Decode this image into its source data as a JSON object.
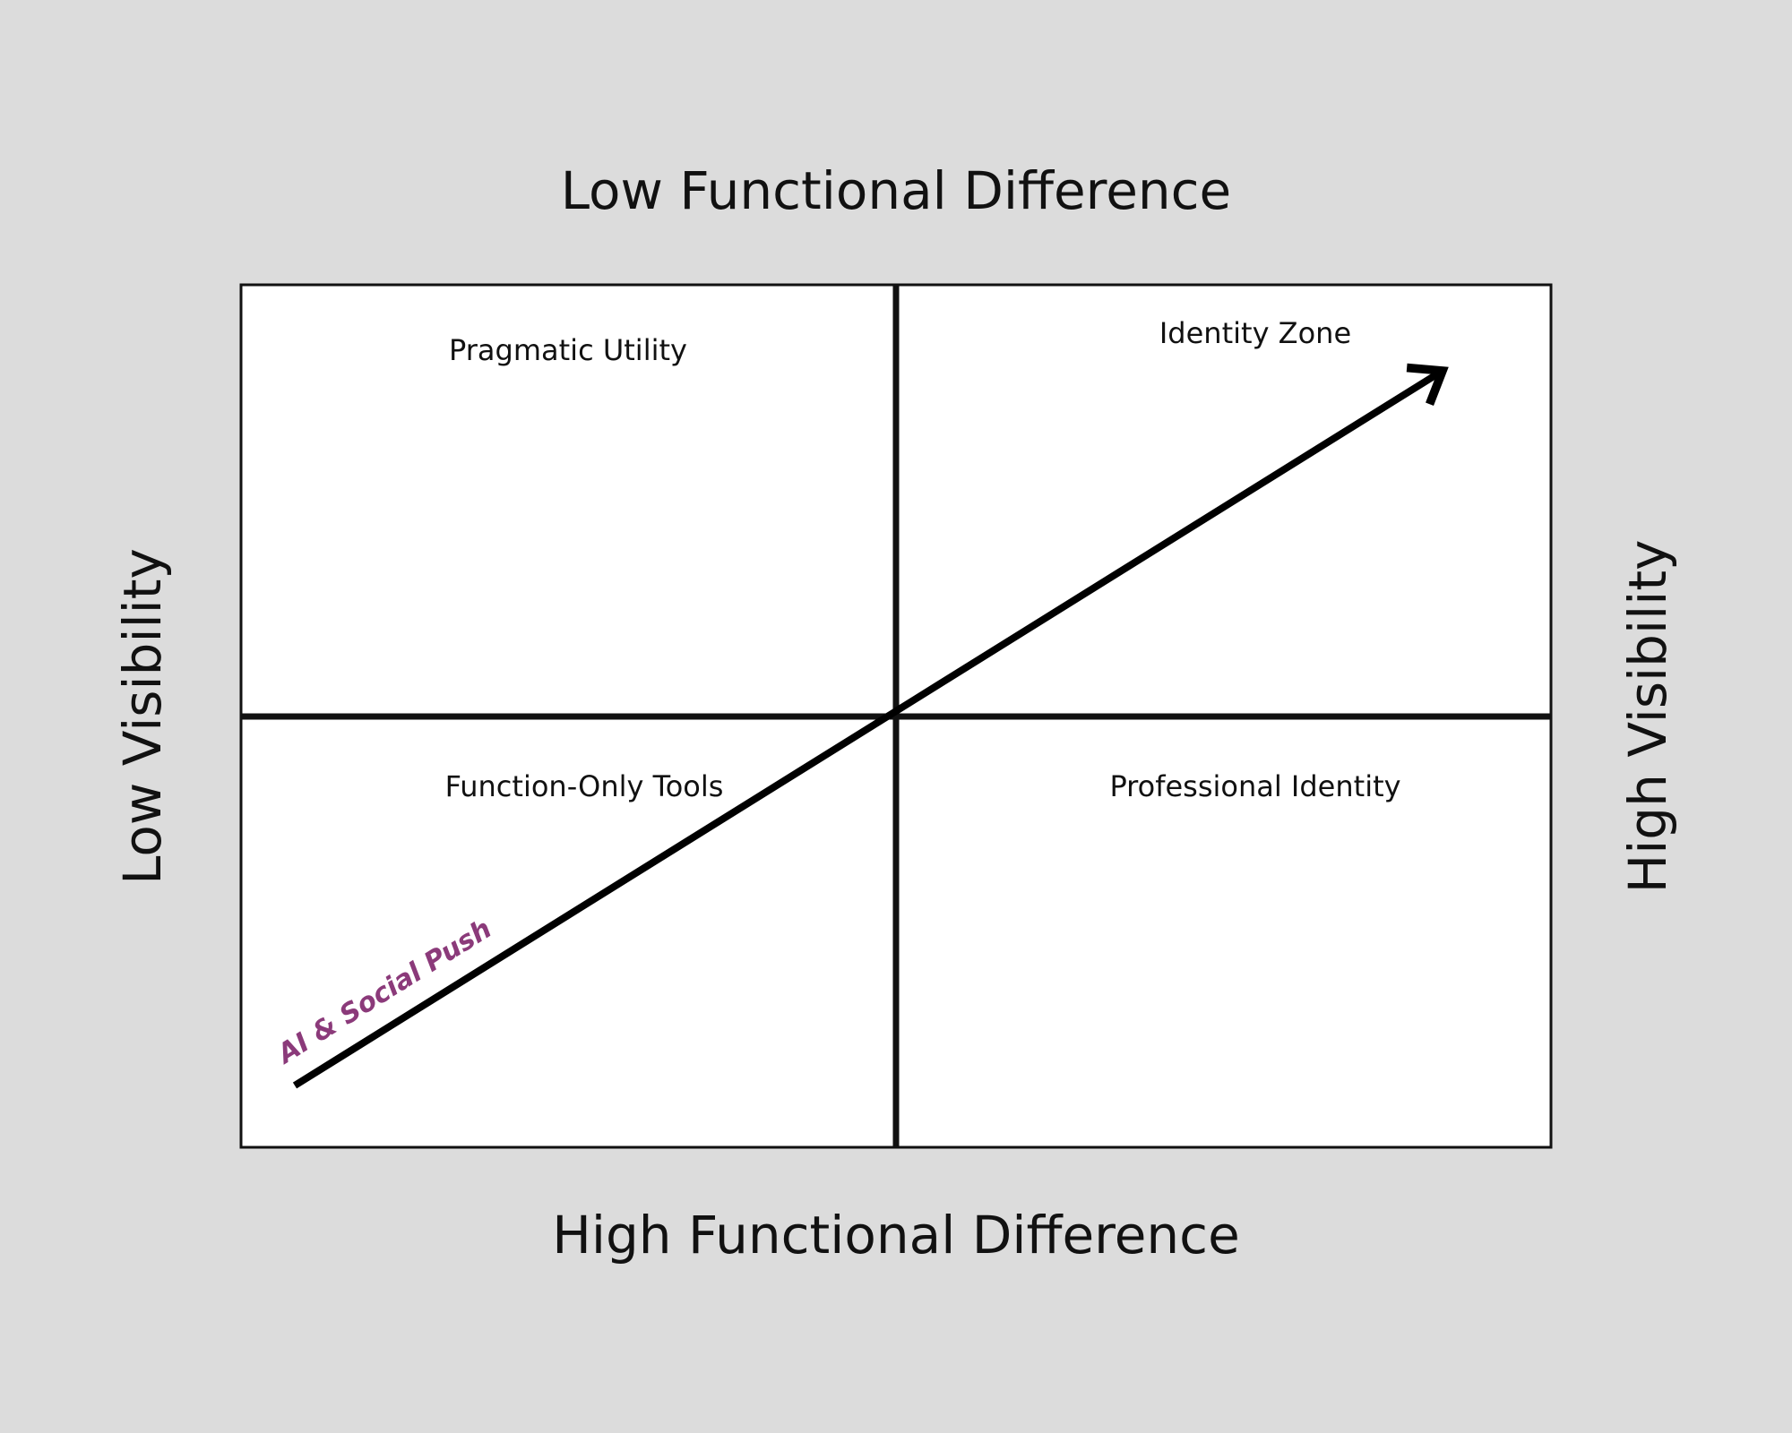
{
  "axes": {
    "top": "Low Functional Difference",
    "bottom": "High Functional Difference",
    "left": "Low Visibility",
    "right": "High Visibility"
  },
  "quadrants": [
    {
      "label": "Pragmatic Utility"
    },
    {
      "label": "Identity Zone"
    },
    {
      "label": "Function-Only Tools"
    },
    {
      "label": "Professional Identity"
    }
  ],
  "arrow": {
    "label": "AI & Social Push"
  }
}
